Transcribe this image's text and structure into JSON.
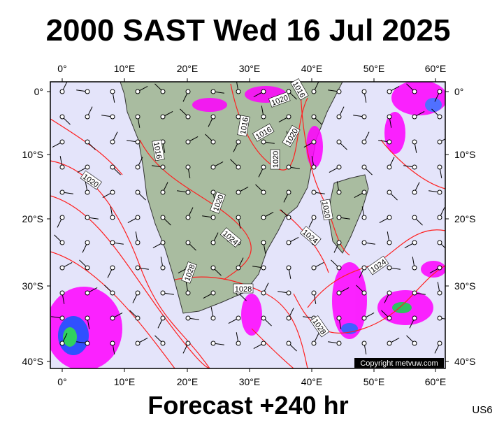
{
  "title": "2000 SAST Wed 16 Jul 2025",
  "footer": "Forecast +240 hr",
  "product_code": "US6",
  "copyright": "Copyright metvuw.com",
  "longitude_labels": [
    "0°",
    "10°E",
    "20°E",
    "30°E",
    "40°E",
    "50°E",
    "60°E"
  ],
  "latitude_labels": [
    "0°",
    "10°S",
    "20°S",
    "30°S",
    "40°S"
  ],
  "isobar_labels": [
    "1016",
    "1020",
    "1016",
    "1016",
    "1020",
    "1016",
    "1020",
    "1020",
    "1020",
    "1020",
    "1024",
    "1024",
    "1028",
    "1028",
    "1024",
    "1028"
  ]
}
